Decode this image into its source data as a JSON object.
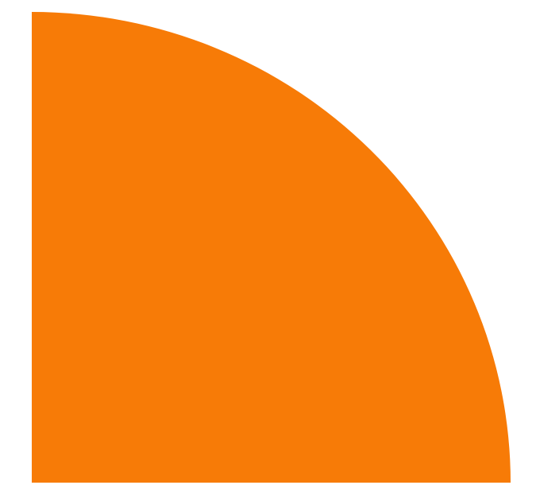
{
  "shape": {
    "type": "quarter-circle",
    "fill_color": "#F77B07",
    "background_color": "#FFFFFF"
  }
}
